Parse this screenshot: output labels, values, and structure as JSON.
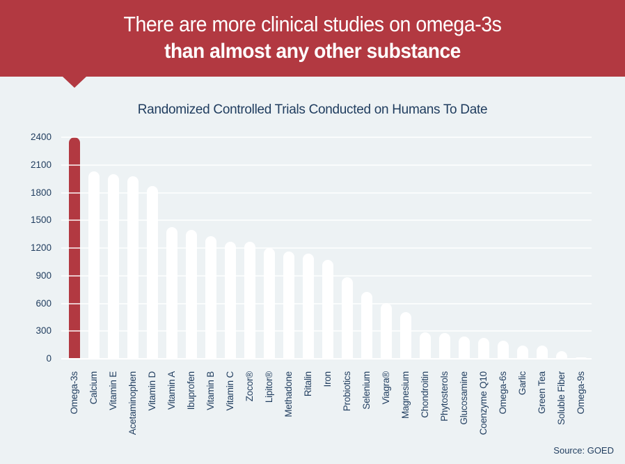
{
  "header": {
    "line1": "There are more clinical studies on omega-3s",
    "line2": "than almost any other substance"
  },
  "chart_data": {
    "type": "bar",
    "title": "Randomized Controlled Trials Conducted on Humans To Date",
    "categories": [
      "Omega-3s",
      "Calcium",
      "Vitamin E",
      "Acetaminophen",
      "Vitamin D",
      "Vitamin A",
      "Ibuprofen",
      "Vitamin B",
      "Vitamin C",
      "Zocor®",
      "Lipitor®",
      "Methadone",
      "Ritalin",
      "Iron",
      "Probiotics",
      "Selenium",
      "Viagra®",
      "Magnesium",
      "Chondroitin",
      "Phytosterols",
      "Glucosamine",
      "Coenzyme Q10",
      "Omega-6s",
      "Garlic",
      "Green Tea",
      "Soluble Fiber",
      "Omega-9s"
    ],
    "values": [
      2400,
      2030,
      2000,
      1980,
      1870,
      1430,
      1400,
      1330,
      1270,
      1270,
      1200,
      1160,
      1140,
      1070,
      880,
      725,
      605,
      505,
      285,
      280,
      240,
      230,
      200,
      140,
      140,
      80,
      15
    ],
    "ylim": [
      0,
      2400
    ],
    "ytick_step": 300,
    "yticks": [
      0,
      300,
      600,
      900,
      1200,
      1500,
      1800,
      2100,
      2400
    ],
    "grid": "horizontal-only",
    "legend": "none",
    "highlight_category": "Omega-3s",
    "highlight_color": "#b23941",
    "bar_color": "#ffffff",
    "source": "Source: GOED"
  },
  "colors": {
    "page_bg": "#edf2f4",
    "banner_red": "#b23941",
    "navy_text": "#1f3c5e",
    "gridline": "#ffffff",
    "header_text": "#ffffff"
  }
}
